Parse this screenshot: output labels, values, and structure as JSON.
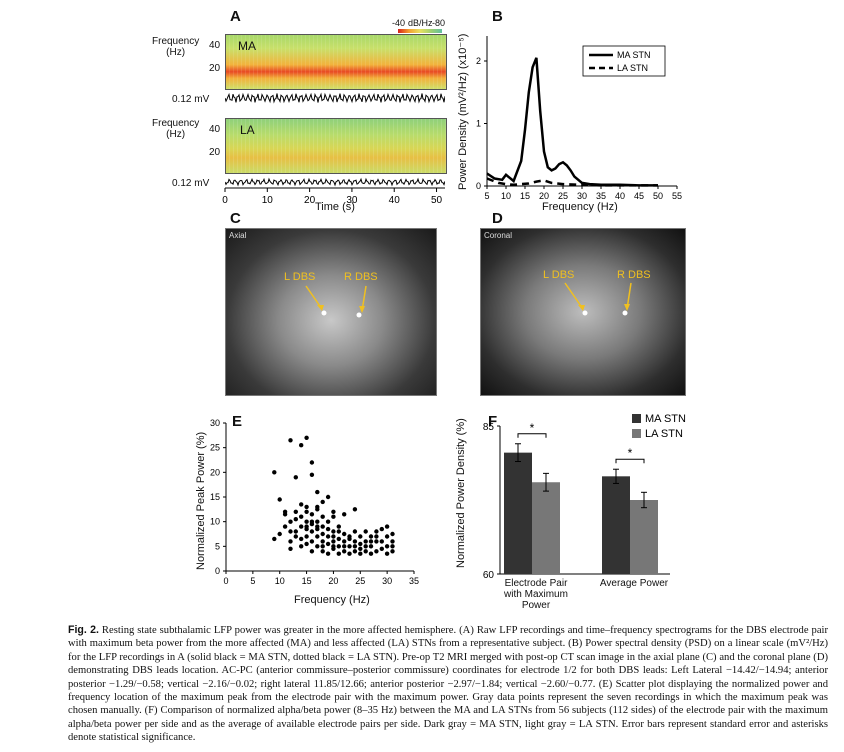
{
  "panelA": {
    "letter": "A",
    "freq_label": "Frequency\n(Hz)",
    "ma_label": "MA",
    "la_label": "LA",
    "ticks_y": [
      "40",
      "20"
    ],
    "voltage_label": "0.12 mV",
    "colorbar": {
      "left": "-40",
      "unit": "dB/Hz",
      "right": "-80"
    },
    "time_ticks": [
      "0",
      "10",
      "20",
      "30",
      "40",
      "50"
    ],
    "time_label": "Time (s)"
  },
  "panelB": {
    "letter": "B",
    "ylabel": "Power Density (mV²/Hz) (x10⁻⁵)",
    "xlabel": "Frequency (Hz)",
    "legend": [
      "MA STN",
      "LA STN"
    ]
  },
  "panelC": {
    "letter": "C",
    "left": "L DBS",
    "right": "R DBS",
    "tag": "Axial"
  },
  "panelD": {
    "letter": "D",
    "left": "L DBS",
    "right": "R DBS",
    "tag": "Coronal"
  },
  "panelE": {
    "letter": "E",
    "ylabel": "Normalized Peak Power (%)",
    "xlabel": "Frequency (Hz)"
  },
  "panelF": {
    "letter": "F",
    "ylabel": "Normalized Power Density (%)",
    "legend": [
      "MA STN",
      "LA STN"
    ],
    "group1": "Electrode Pair\nwith Maximum\nPower",
    "group2": "Average Power",
    "sig": "*"
  },
  "chart_data": [
    {
      "type": "line",
      "panel": "B",
      "xlabel": "Frequency (Hz)",
      "ylabel": "Power Density (mV²/Hz) (x10⁻⁵)",
      "xlim": [
        5,
        55
      ],
      "ylim": [
        0,
        2.4
      ],
      "x_ticks": [
        5,
        10,
        15,
        20,
        25,
        30,
        35,
        40,
        45,
        50,
        55
      ],
      "y_ticks": [
        0,
        1,
        2
      ],
      "legend_position": "top-right",
      "series": [
        {
          "name": "MA STN",
          "style": "solid",
          "x": [
            5,
            7,
            9,
            10,
            12,
            14,
            15,
            16,
            17,
            18,
            19,
            20,
            21,
            22,
            23,
            24,
            25,
            26,
            27,
            28,
            30,
            32,
            35,
            40,
            45,
            50
          ],
          "y": [
            0.2,
            0.12,
            0.1,
            0.18,
            0.08,
            0.4,
            0.9,
            1.5,
            1.9,
            2.05,
            1.2,
            0.55,
            0.3,
            0.25,
            0.28,
            0.35,
            0.38,
            0.33,
            0.25,
            0.15,
            0.05,
            0.03,
            0.02,
            0.02,
            0.01,
            0.01
          ]
        },
        {
          "name": "LA STN",
          "style": "dashed",
          "x": [
            5,
            8,
            10,
            12,
            14,
            16,
            18,
            20,
            22,
            25,
            30,
            35,
            40,
            45,
            50
          ],
          "y": [
            0.12,
            0.05,
            0.03,
            0.02,
            0.03,
            0.04,
            0.07,
            0.09,
            0.05,
            0.03,
            0.02,
            0.01,
            0.01,
            0.01,
            0.01
          ]
        }
      ]
    },
    {
      "type": "scatter",
      "panel": "E",
      "xlabel": "Frequency (Hz)",
      "ylabel": "Normalized Peak Power (%)",
      "xlim": [
        0,
        35
      ],
      "ylim": [
        0,
        30
      ],
      "x_ticks": [
        0,
        5,
        10,
        15,
        20,
        25,
        30,
        35
      ],
      "y_ticks": [
        0,
        5,
        10,
        15,
        20,
        25,
        30
      ],
      "points": [
        [
          9,
          20
        ],
        [
          9,
          6.5
        ],
        [
          10,
          14.5
        ],
        [
          11,
          11.5
        ],
        [
          12,
          26.5
        ],
        [
          14,
          25.5
        ],
        [
          15,
          27
        ],
        [
          16,
          22
        ],
        [
          17,
          16
        ],
        [
          15,
          13
        ],
        [
          16,
          19.5
        ],
        [
          17,
          13
        ],
        [
          18,
          14
        ],
        [
          13,
          19
        ],
        [
          11,
          9
        ],
        [
          12,
          10
        ],
        [
          12,
          6
        ],
        [
          12,
          4.5
        ],
        [
          13,
          8
        ],
        [
          13,
          12
        ],
        [
          13,
          10.5
        ],
        [
          14,
          6.5
        ],
        [
          14,
          9
        ],
        [
          14,
          11
        ],
        [
          14,
          5
        ],
        [
          15,
          7
        ],
        [
          15,
          8.5
        ],
        [
          15,
          10
        ],
        [
          15,
          12
        ],
        [
          15,
          5.5
        ],
        [
          16,
          4
        ],
        [
          16,
          6
        ],
        [
          16,
          8
        ],
        [
          16,
          9.5
        ],
        [
          16,
          11.5
        ],
        [
          17,
          5
        ],
        [
          17,
          7
        ],
        [
          17,
          8.5
        ],
        [
          17,
          10
        ],
        [
          17,
          12.5
        ],
        [
          18,
          4
        ],
        [
          18,
          6
        ],
        [
          18,
          7.5
        ],
        [
          18,
          9
        ],
        [
          18,
          11
        ],
        [
          19,
          3.5
        ],
        [
          19,
          5.5
        ],
        [
          19,
          7
        ],
        [
          19,
          10
        ],
        [
          19,
          15
        ],
        [
          20,
          4.5
        ],
        [
          20,
          6
        ],
        [
          20,
          8
        ],
        [
          20,
          11
        ],
        [
          20,
          12
        ],
        [
          21,
          3.5
        ],
        [
          21,
          5
        ],
        [
          21,
          6.5
        ],
        [
          21,
          9
        ],
        [
          22,
          4
        ],
        [
          22,
          6
        ],
        [
          22,
          7.5
        ],
        [
          22,
          11.5
        ],
        [
          23,
          3.5
        ],
        [
          23,
          5
        ],
        [
          23,
          7
        ],
        [
          24,
          4
        ],
        [
          24,
          6
        ],
        [
          24,
          8
        ],
        [
          24,
          12.5
        ],
        [
          25,
          3.5
        ],
        [
          25,
          5.5
        ],
        [
          25,
          7
        ],
        [
          26,
          4
        ],
        [
          26,
          6
        ],
        [
          26,
          8
        ],
        [
          27,
          3.5
        ],
        [
          27,
          5
        ],
        [
          27,
          7
        ],
        [
          28,
          4
        ],
        [
          28,
          6
        ],
        [
          28,
          8
        ],
        [
          29,
          4.5
        ],
        [
          29,
          6
        ],
        [
          30,
          3.5
        ],
        [
          30,
          5
        ],
        [
          30,
          7
        ],
        [
          31,
          4
        ],
        [
          31,
          6
        ],
        [
          31,
          7.5
        ],
        [
          10,
          7.5
        ],
        [
          11,
          12
        ],
        [
          12,
          8
        ],
        [
          13,
          7
        ],
        [
          14,
          13.5
        ],
        [
          15,
          9
        ],
        [
          16,
          10
        ],
        [
          17,
          9
        ],
        [
          18,
          5
        ],
        [
          19,
          8.5
        ],
        [
          20,
          7
        ],
        [
          21,
          8
        ],
        [
          23,
          6.5
        ],
        [
          25,
          4.5
        ],
        [
          27,
          6
        ],
        [
          29,
          8.5
        ],
        [
          30,
          9
        ],
        [
          31,
          5
        ],
        [
          28,
          7
        ],
        [
          26,
          5
        ],
        [
          24,
          5
        ],
        [
          22,
          5
        ],
        [
          20,
          5
        ]
      ]
    },
    {
      "type": "bar",
      "panel": "F",
      "ylabel": "Normalized Power Density (%)",
      "ylim": [
        60,
        85
      ],
      "y_ticks": [
        60,
        85
      ],
      "categories": [
        "Electrode Pair with Maximum Power",
        "Average Power"
      ],
      "legend_position": "top-right",
      "series": [
        {
          "name": "MA STN",
          "color": "#333333",
          "values": [
            80.5,
            76.5
          ],
          "error": [
            1.5,
            1.2
          ]
        },
        {
          "name": "LA STN",
          "color": "#777777",
          "values": [
            75.5,
            72.5
          ],
          "error": [
            1.5,
            1.3
          ]
        }
      ]
    }
  ],
  "caption": {
    "label": "Fig. 2.",
    "text": "Resting state subthalamic LFP power was greater in the more affected hemisphere. (A) Raw LFP recordings and time–frequency spectrograms for the DBS electrode pair with maximum beta power from the more affected (MA) and less affected (LA) STNs from a representative subject. (B) Power spectral density (PSD) on a linear scale (mV²/Hz) for the LFP recordings in A (solid black = MA STN, dotted black = LA STN). Pre-op T2 MRI merged with post-op CT scan image in the axial plane (C) and the coronal plane (D) demonstrating DBS leads location. AC-PC (anterior commissure–posterior commissure) coordinates for electrode 1/2 for both DBS leads: Left Lateral −14.42/−14.94; anterior posterior −1.29/−0.58; vertical −2.16/−0.02; right lateral 11.85/12.66; anterior posterior −2.97/−1.84; vertical −2.60/−0.77. (E) Scatter plot displaying the normalized power and frequency location of the maximum peak from the electrode pair with the maximum power. Gray data points represent the seven recordings in which the maximum peak was chosen manually. (F) Comparison of normalized alpha/beta power (8–35 Hz) between the MA and LA STNs from 56 subjects (112 sides) of the electrode pair with the maximum alpha/beta power per side and as the average of available electrode pairs per side. Dark gray = MA STN, light gray = LA STN. Error bars represent standard error and asterisks denote statistical significance."
  }
}
